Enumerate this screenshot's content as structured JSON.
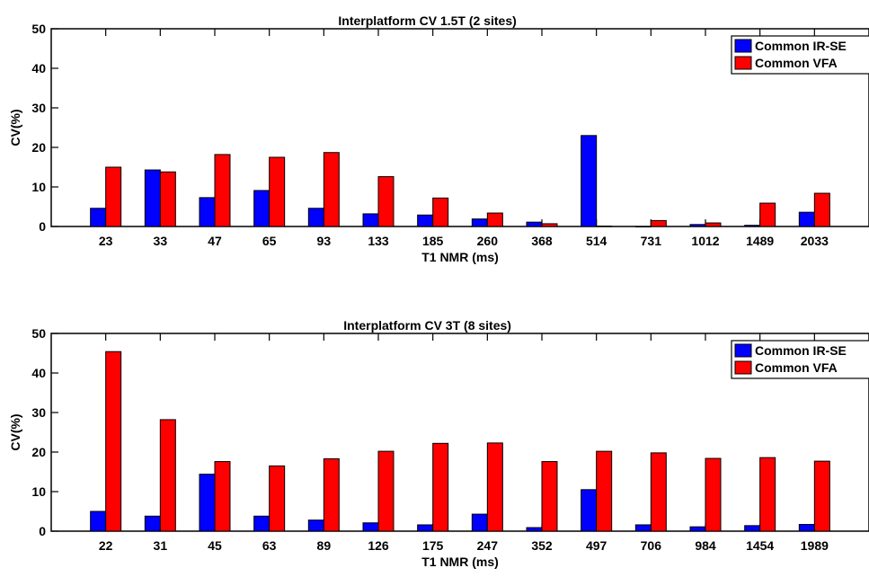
{
  "chart_data": [
    {
      "type": "bar",
      "title": "Interplatform CV 1.5T (2 sites)",
      "xlabel": "T1 NMR (ms)",
      "ylabel": "CV(%)",
      "ylim": [
        0,
        50
      ],
      "yticks": [
        0,
        10,
        20,
        30,
        40,
        50
      ],
      "grid": false,
      "legend_position": "top-right",
      "categories": [
        "23",
        "33",
        "47",
        "65",
        "93",
        "133",
        "185",
        "260",
        "368",
        "514",
        "731",
        "1012",
        "1489",
        "2033"
      ],
      "series": [
        {
          "name": "Common IR-SE",
          "color": "#0000ff",
          "values": [
            4.6,
            14.3,
            7.3,
            9.1,
            4.6,
            3.2,
            2.9,
            1.9,
            1.1,
            23.0,
            0.0,
            0.5,
            0.3,
            3.6
          ]
        },
        {
          "name": "Common VFA",
          "color": "#ff0000",
          "values": [
            15.0,
            13.8,
            18.2,
            17.5,
            18.7,
            12.6,
            7.2,
            3.4,
            0.7,
            0.1,
            1.5,
            0.9,
            5.9,
            8.4
          ]
        }
      ]
    },
    {
      "type": "bar",
      "title": "Interplatform CV 3T (8 sites)",
      "xlabel": "T1 NMR (ms)",
      "ylabel": "CV(%)",
      "ylim": [
        0,
        50
      ],
      "yticks": [
        0,
        10,
        20,
        30,
        40,
        50
      ],
      "grid": false,
      "legend_position": "top-right",
      "categories": [
        "22",
        "31",
        "45",
        "63",
        "89",
        "126",
        "175",
        "247",
        "352",
        "497",
        "706",
        "984",
        "1454",
        "1989"
      ],
      "series": [
        {
          "name": "Common IR-SE",
          "color": "#0000ff",
          "values": [
            5.0,
            3.8,
            14.4,
            3.8,
            2.8,
            2.1,
            1.6,
            4.3,
            0.9,
            10.5,
            1.6,
            1.1,
            1.4,
            1.7
          ]
        },
        {
          "name": "Common VFA",
          "color": "#ff0000",
          "values": [
            45.4,
            28.2,
            17.6,
            16.5,
            18.3,
            20.2,
            22.2,
            22.3,
            17.6,
            20.2,
            19.8,
            18.4,
            18.6,
            17.7
          ]
        }
      ]
    }
  ]
}
